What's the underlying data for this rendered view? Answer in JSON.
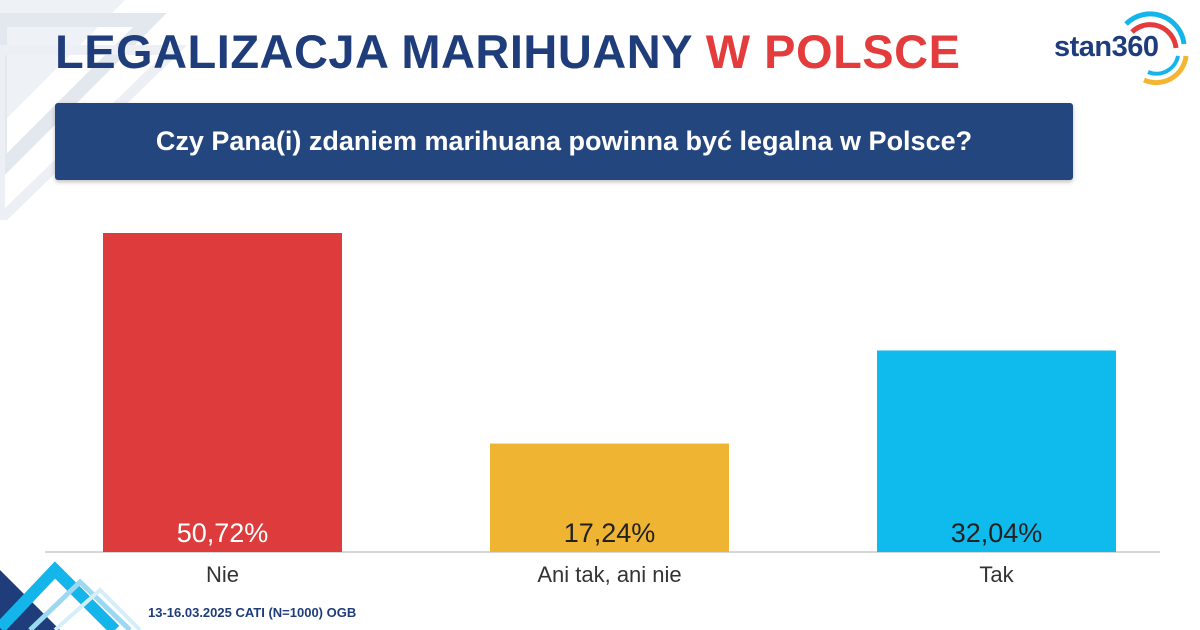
{
  "header": {
    "title_part1": "LEGALIZACJA MARIHUANY",
    "title_part2": "W POLSCE",
    "logo_text": "stan360"
  },
  "question": "Czy Pana(i) zdaniem marihuana powinna być legalna w Polsce?",
  "footer": {
    "note": "13-16.03.2025 CATI (N=1000) OGB"
  },
  "colors": {
    "navy": "#1f3d7a",
    "red": "#e43c3c",
    "question_bg": "#24467f"
  },
  "chart_data": {
    "type": "bar",
    "categories": [
      "Nie",
      "Ani tak, ani nie",
      "Tak"
    ],
    "values": [
      50.72,
      17.24,
      32.04
    ],
    "value_labels": [
      "50,72%",
      "17,24%",
      "32,04%"
    ],
    "colors": [
      "#de3c3c",
      "#efb432",
      "#0fbaec"
    ],
    "ylim": [
      0,
      50.72
    ],
    "grid": false,
    "legend": "none"
  }
}
